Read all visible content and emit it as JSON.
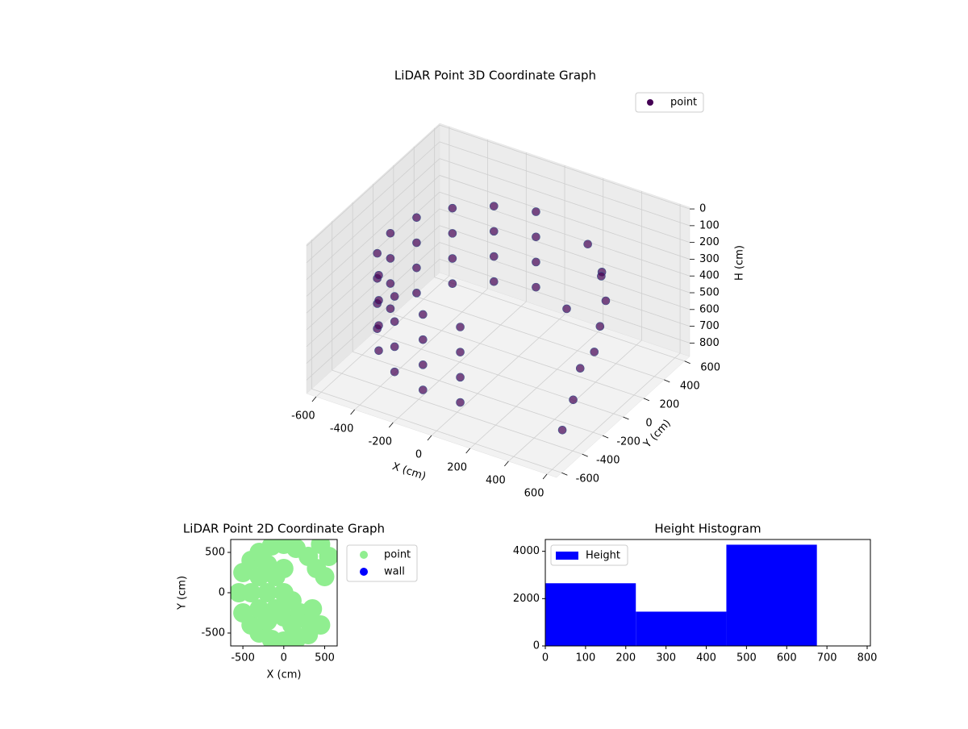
{
  "chart_data": [
    {
      "type": "scatter3d",
      "title": "LiDAR Point 3D Coordinate Graph",
      "xlabel": "X (cm)",
      "ylabel": "Y (cm)",
      "zlabel": "H (cm)",
      "series": [
        {
          "name": "point",
          "color": "#440154",
          "x": [
            -97,
            -97,
            -97,
            -97,
            -280,
            -280,
            -280,
            -280,
            -429,
            -429,
            -429,
            -429,
            -526,
            -526,
            -526,
            -526,
            -560,
            -560,
            -560,
            -560,
            -526,
            -526,
            -526,
            -526,
            -429,
            -429,
            -429,
            -429,
            -280,
            -280,
            -280,
            -280,
            -97,
            -97,
            -97,
            -97,
            97,
            97,
            97,
            97,
            200,
            300,
            400,
            450,
            500,
            480,
            350,
            250,
            550,
            600
          ],
          "y": [
            552,
            552,
            552,
            552,
            485,
            485,
            485,
            485,
            360,
            360,
            360,
            360,
            192,
            192,
            192,
            192,
            0,
            0,
            0,
            0,
            -192,
            -192,
            -192,
            -192,
            -360,
            -360,
            -360,
            -360,
            -485,
            -485,
            -485,
            -485,
            -552,
            -552,
            -552,
            -552,
            -552,
            -552,
            -552,
            -552,
            500,
            450,
            300,
            150,
            0,
            -100,
            350,
            200,
            -300,
            -500
          ],
          "z": [
            250,
            400,
            550,
            700,
            250,
            400,
            550,
            700,
            250,
            400,
            550,
            700,
            250,
            400,
            550,
            700,
            250,
            400,
            550,
            700,
            250,
            400,
            550,
            700,
            250,
            400,
            550,
            700,
            250,
            400,
            550,
            700,
            250,
            400,
            550,
            700,
            250,
            400,
            550,
            700,
            300,
            400,
            450,
            500,
            550,
            600,
            350,
            500,
            650,
            700
          ]
        }
      ],
      "xlim": [
        -650,
        650
      ],
      "ylim": [
        -650,
        650
      ],
      "zlim": [
        880,
        -10
      ],
      "xticks": [
        -600,
        -400,
        -200,
        0,
        200,
        400,
        600
      ],
      "yticks": [
        -600,
        -400,
        -200,
        0,
        200,
        400,
        600
      ],
      "zticks": [
        0,
        100,
        200,
        300,
        400,
        500,
        600,
        700,
        800
      ],
      "grid": true,
      "legend": "upper right"
    },
    {
      "type": "scatter",
      "title": "LiDAR Point 2D Coordinate Graph",
      "xlabel": "X (cm)",
      "ylabel": "Y (cm)",
      "series": [
        {
          "name": "point",
          "color": "#90ee90",
          "x": [
            -550,
            -500,
            -500,
            -400,
            -400,
            -300,
            -300,
            -150,
            -150,
            0,
            0,
            150,
            300,
            450,
            -400,
            -300,
            -300,
            -200,
            -200,
            -200,
            -100,
            -100,
            0,
            0,
            0,
            100,
            100,
            200,
            300,
            150,
            300,
            400,
            450,
            550,
            500,
            350
          ],
          "y": [
            0,
            -250,
            250,
            -400,
            400,
            -500,
            500,
            -580,
            580,
            -600,
            600,
            -580,
            -520,
            -400,
            0,
            -200,
            200,
            0,
            -350,
            350,
            -200,
            200,
            0,
            -300,
            300,
            -400,
            -100,
            -250,
            -350,
            550,
            450,
            300,
            600,
            450,
            200,
            -200
          ]
        },
        {
          "name": "wall",
          "color": "#0000ff",
          "x": [],
          "y": []
        }
      ],
      "xlim": [
        -649,
        653
      ],
      "ylim": [
        -660,
        660
      ],
      "xticks": [
        -500,
        0,
        500
      ],
      "yticks": [
        -500,
        0,
        500
      ],
      "legend": "outside right"
    },
    {
      "type": "histogram",
      "title": "Height Histogram",
      "bins": [
        0,
        225,
        450,
        675
      ],
      "series": [
        {
          "name": "Height",
          "color": "#0000ff",
          "values": [
            2650,
            1450,
            4280
          ]
        }
      ],
      "xlim": [
        0,
        808
      ],
      "ylim": [
        0,
        4500
      ],
      "xticks": [
        0,
        100,
        200,
        300,
        400,
        500,
        600,
        700,
        800
      ],
      "yticks": [
        0,
        2000,
        4000
      ],
      "legend": "upper left"
    }
  ]
}
